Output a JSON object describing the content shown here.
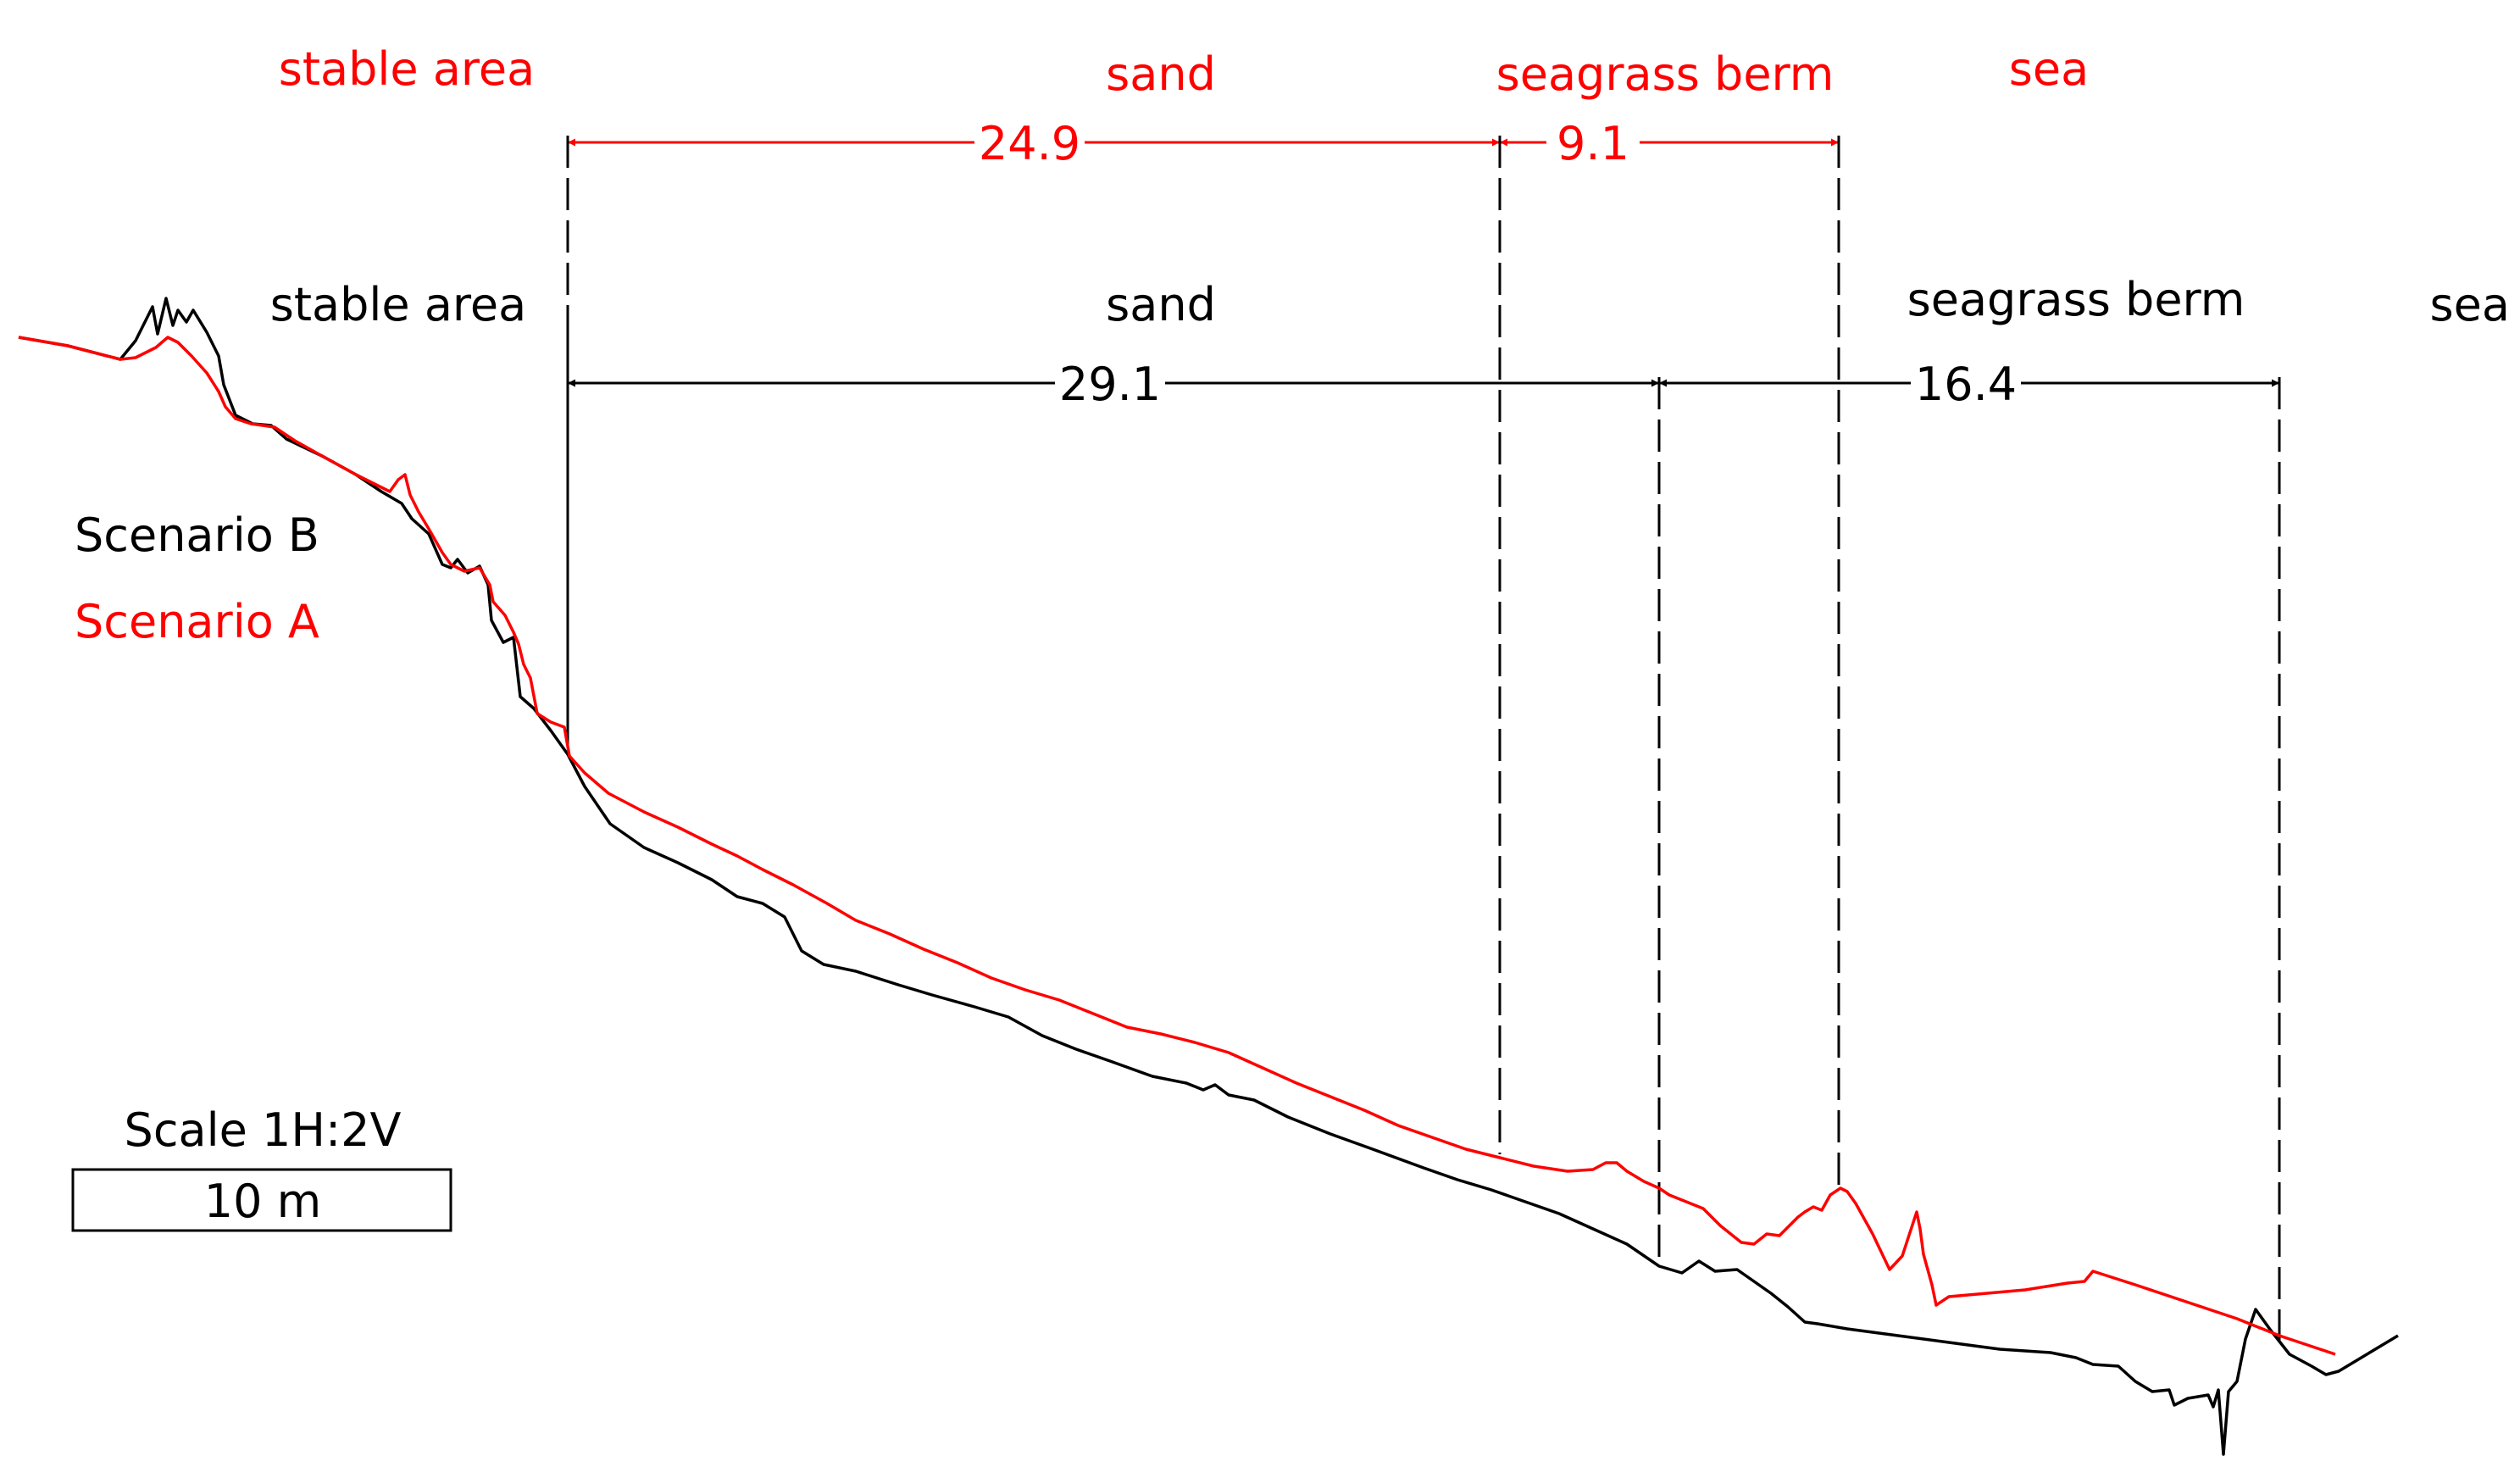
{
  "colors": {
    "scenario_a": "#ff0000",
    "scenario_b": "#000000"
  },
  "scenario_a": {
    "legend": "Scenario A",
    "zones": [
      {
        "label": "stable area"
      },
      {
        "label": "sand",
        "length": "24.9"
      },
      {
        "label": "seagrass berm",
        "length": "9.1"
      },
      {
        "label": "sea"
      }
    ]
  },
  "scenario_b": {
    "legend": "Scenario B",
    "zones": [
      {
        "label": "stable area"
      },
      {
        "label": "sand",
        "length": "29.1"
      },
      {
        "label": "seagrass berm",
        "length": "16.4"
      },
      {
        "label": "sea"
      }
    ]
  },
  "scale": {
    "title": "Scale 1H:2V",
    "bar_label": "10 m"
  }
}
